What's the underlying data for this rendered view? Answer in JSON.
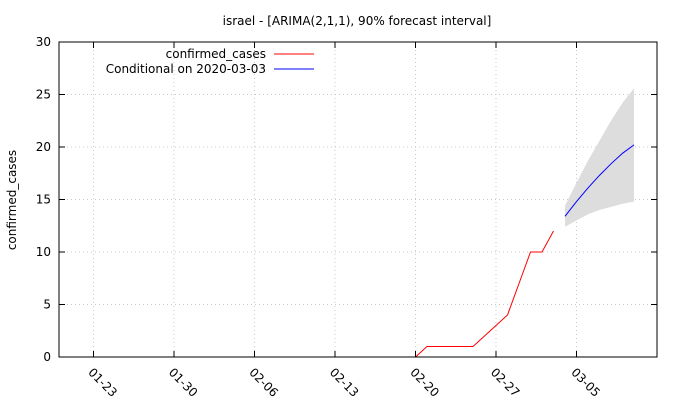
{
  "chart_data": {
    "type": "line",
    "title": "israel -  [ARIMA(2,1,1), 90% forecast interval]",
    "ylabel": "confirmed_cases",
    "xlabel": "",
    "ylim": [
      0,
      30
    ],
    "yticks": [
      0,
      5,
      10,
      15,
      20,
      25,
      30
    ],
    "xlim": [
      "2020-01-20",
      "2020-03-12"
    ],
    "xticks": [
      {
        "date": "2020-01-23",
        "label": "01-23"
      },
      {
        "date": "2020-01-30",
        "label": "01-30"
      },
      {
        "date": "2020-02-06",
        "label": "02-06"
      },
      {
        "date": "2020-02-13",
        "label": "02-13"
      },
      {
        "date": "2020-02-20",
        "label": "02-20"
      },
      {
        "date": "2020-02-27",
        "label": "02-27"
      },
      {
        "date": "2020-03-05",
        "label": "03-05"
      }
    ],
    "grid": true,
    "legend_position": "top-left",
    "series": [
      {
        "name": "confirmed_cases",
        "color": "#ff0000",
        "points": [
          {
            "x": "2020-02-20",
            "y": 0
          },
          {
            "x": "2020-02-21",
            "y": 1
          },
          {
            "x": "2020-02-22",
            "y": 1
          },
          {
            "x": "2020-02-23",
            "y": 1
          },
          {
            "x": "2020-02-24",
            "y": 1
          },
          {
            "x": "2020-02-25",
            "y": 1
          },
          {
            "x": "2020-02-26",
            "y": 2
          },
          {
            "x": "2020-02-27",
            "y": 3
          },
          {
            "x": "2020-02-28",
            "y": 4
          },
          {
            "x": "2020-02-29",
            "y": 7
          },
          {
            "x": "2020-03-01",
            "y": 10
          },
          {
            "x": "2020-03-02",
            "y": 10
          },
          {
            "x": "2020-03-03",
            "y": 12
          }
        ]
      },
      {
        "name": "Conditional on 2020-03-03",
        "color": "#0000ff",
        "band_color": "#dddddd",
        "points": [
          {
            "x": "2020-03-04",
            "y": 13.4,
            "lower": 12.4,
            "upper": 14.4
          },
          {
            "x": "2020-03-05",
            "y": 14.8,
            "lower": 13.0,
            "upper": 16.6
          },
          {
            "x": "2020-03-06",
            "y": 16.1,
            "lower": 13.6,
            "upper": 18.7
          },
          {
            "x": "2020-03-07",
            "y": 17.3,
            "lower": 14.0,
            "upper": 20.6
          },
          {
            "x": "2020-03-08",
            "y": 18.4,
            "lower": 14.3,
            "upper": 22.5
          },
          {
            "x": "2020-03-09",
            "y": 19.4,
            "lower": 14.6,
            "upper": 24.2
          },
          {
            "x": "2020-03-10",
            "y": 20.2,
            "lower": 14.8,
            "upper": 25.6
          }
        ]
      }
    ]
  }
}
